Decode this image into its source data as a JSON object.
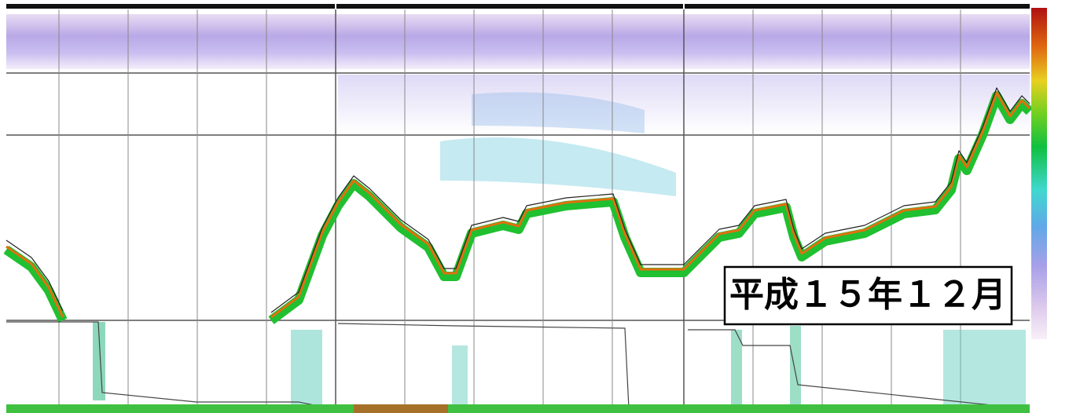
{
  "label": "平成１５年１２月"
}
